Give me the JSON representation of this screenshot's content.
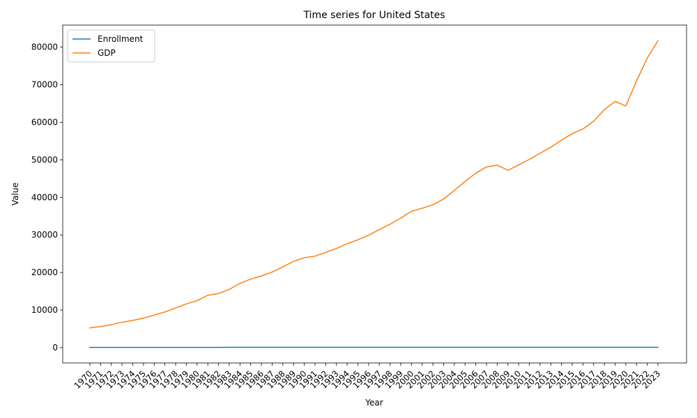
{
  "chart_data": {
    "type": "line",
    "title": "Time series for United States",
    "xlabel": "Year",
    "ylabel": "Value",
    "ylim": [
      -4088,
      85877
    ],
    "yticks": [
      0,
      10000,
      20000,
      30000,
      40000,
      50000,
      60000,
      70000,
      80000
    ],
    "grid": false,
    "legend_position": "top-left",
    "categories": [
      "1970",
      "1971",
      "1972",
      "1973",
      "1974",
      "1975",
      "1976",
      "1977",
      "1978",
      "1979",
      "1980",
      "1981",
      "1982",
      "1983",
      "1984",
      "1985",
      "1986",
      "1987",
      "1988",
      "1989",
      "1990",
      "1991",
      "1992",
      "1993",
      "1994",
      "1995",
      "1996",
      "1997",
      "1998",
      "1999",
      "2000",
      "2001",
      "2002",
      "2003",
      "2004",
      "2005",
      "2006",
      "2007",
      "2008",
      "2009",
      "2010",
      "2011",
      "2012",
      "2013",
      "2014",
      "2015",
      "2016",
      "2017",
      "2018",
      "2019",
      "2020",
      "2021",
      "2022",
      "2023"
    ],
    "series": [
      {
        "name": "Enrollment",
        "color": "#1f77b4",
        "values": [
          70,
          68,
          67,
          66,
          66,
          67,
          68,
          68,
          69,
          70,
          71,
          72,
          73,
          74,
          75,
          76,
          77,
          78,
          80,
          80,
          79,
          78,
          77,
          77,
          77,
          77,
          77,
          78,
          78,
          79,
          80,
          81,
          82,
          81,
          80,
          79,
          80,
          81,
          82,
          83,
          83,
          82,
          80,
          79,
          78,
          78,
          78,
          78,
          78,
          78,
          76,
          76,
          76,
          75
        ]
      },
      {
        "name": "GDP",
        "color": "#ff7f0e",
        "values": [
          5250,
          5600,
          6100,
          6750,
          7250,
          7850,
          8650,
          9500,
          10550,
          11650,
          12500,
          13950,
          14400,
          15500,
          17100,
          18250,
          19100,
          20100,
          21500,
          22950,
          23950,
          24350,
          25350,
          26400,
          27700,
          28700,
          29900,
          31450,
          32850,
          34500,
          36300,
          37100,
          38050,
          39550,
          41850,
          44250,
          46450,
          48100,
          48600,
          47200,
          48650,
          50100,
          51750,
          53350,
          55250,
          57000,
          58200,
          60300,
          63350,
          65550,
          64350,
          71000,
          77100,
          81700
        ]
      }
    ]
  }
}
